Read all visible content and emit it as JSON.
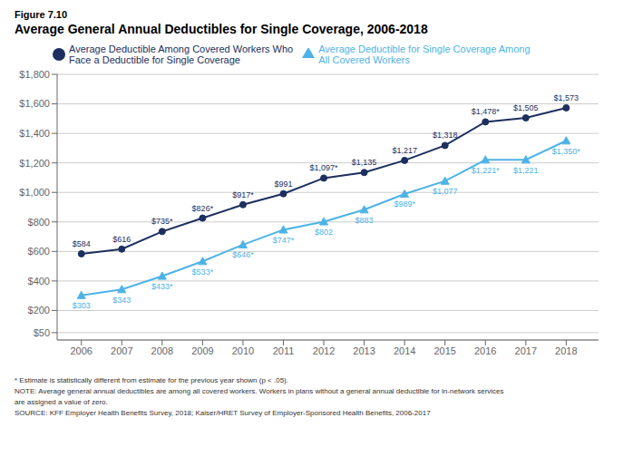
{
  "chart_data": {
    "type": "line",
    "subtitle": "Figure 7.10",
    "title": "Average General Annual Deductibles for Single Coverage, 2006-2018",
    "x": [
      2006,
      2007,
      2008,
      2009,
      2010,
      2011,
      2012,
      2013,
      2014,
      2015,
      2016,
      2017,
      2018
    ],
    "series": [
      {
        "name": "Average Deductible Among Covered Workers Who\nFace a Deductible for Single Coverage",
        "color": "#1c2f5e",
        "marker": "circle",
        "values": [
          584,
          616,
          735,
          826,
          917,
          991,
          1097,
          1135,
          1217,
          1318,
          1478,
          1505,
          1573
        ],
        "value_labels": [
          "$584",
          "$616",
          "$735*",
          "$826*",
          "$917*",
          "$991",
          "$1,097*",
          "$1,135",
          "$1,217",
          "$1,318",
          "$1,478*",
          "$1,505",
          "$1,573"
        ]
      },
      {
        "name": "Average Deductible for Single Coverage Among\nAll Covered Workers",
        "color": "#4db3e6",
        "marker": "triangle",
        "values": [
          303,
          343,
          433,
          533,
          646,
          747,
          802,
          883,
          989,
          1077,
          1221,
          1221,
          1350
        ],
        "value_labels": [
          "$303",
          "$343",
          "$433*",
          "$533*",
          "$646*",
          "$747*",
          "$802",
          "$883",
          "$989*",
          "$1,077",
          "$1,221*",
          "$1,221",
          "$1,350*"
        ]
      }
    ],
    "xlim": [
      2005.4,
      2018.8
    ],
    "xticks": [
      2006,
      2007,
      2008,
      2009,
      2010,
      2011,
      2012,
      2013,
      2014,
      2015,
      2016,
      2017,
      2018
    ],
    "ylim": [
      0,
      1800
    ],
    "yticks": [
      {
        "value": 50,
        "label": "$50"
      },
      {
        "value": 200,
        "label": "$200"
      },
      {
        "value": 400,
        "label": "$400"
      },
      {
        "value": 600,
        "label": "$600"
      },
      {
        "value": 800,
        "label": "$800"
      },
      {
        "value": 1000,
        "label": "$1,000"
      },
      {
        "value": 1200,
        "label": "$1,200"
      },
      {
        "value": 1400,
        "label": "$1,400"
      },
      {
        "value": 1600,
        "label": "$1,600"
      },
      {
        "value": 1800,
        "label": "$1,800"
      }
    ],
    "grid": true,
    "legend": "upper left",
    "data_labels": true,
    "annotations": [
      "* Estimate is statistically different from estimate for the previous year shown (p < .05).",
      "NOTE: Average general annual deductibles are among all covered workers. Workers in plans without a general annual deductible for in-network services",
      "are assigned a value of zero.",
      "SOURCE: KFF Employer Health Benefits Survey, 2018; Kaiser/HRET Survey of Employer-Sponsored Health Benefits, 2006-2017"
    ]
  }
}
